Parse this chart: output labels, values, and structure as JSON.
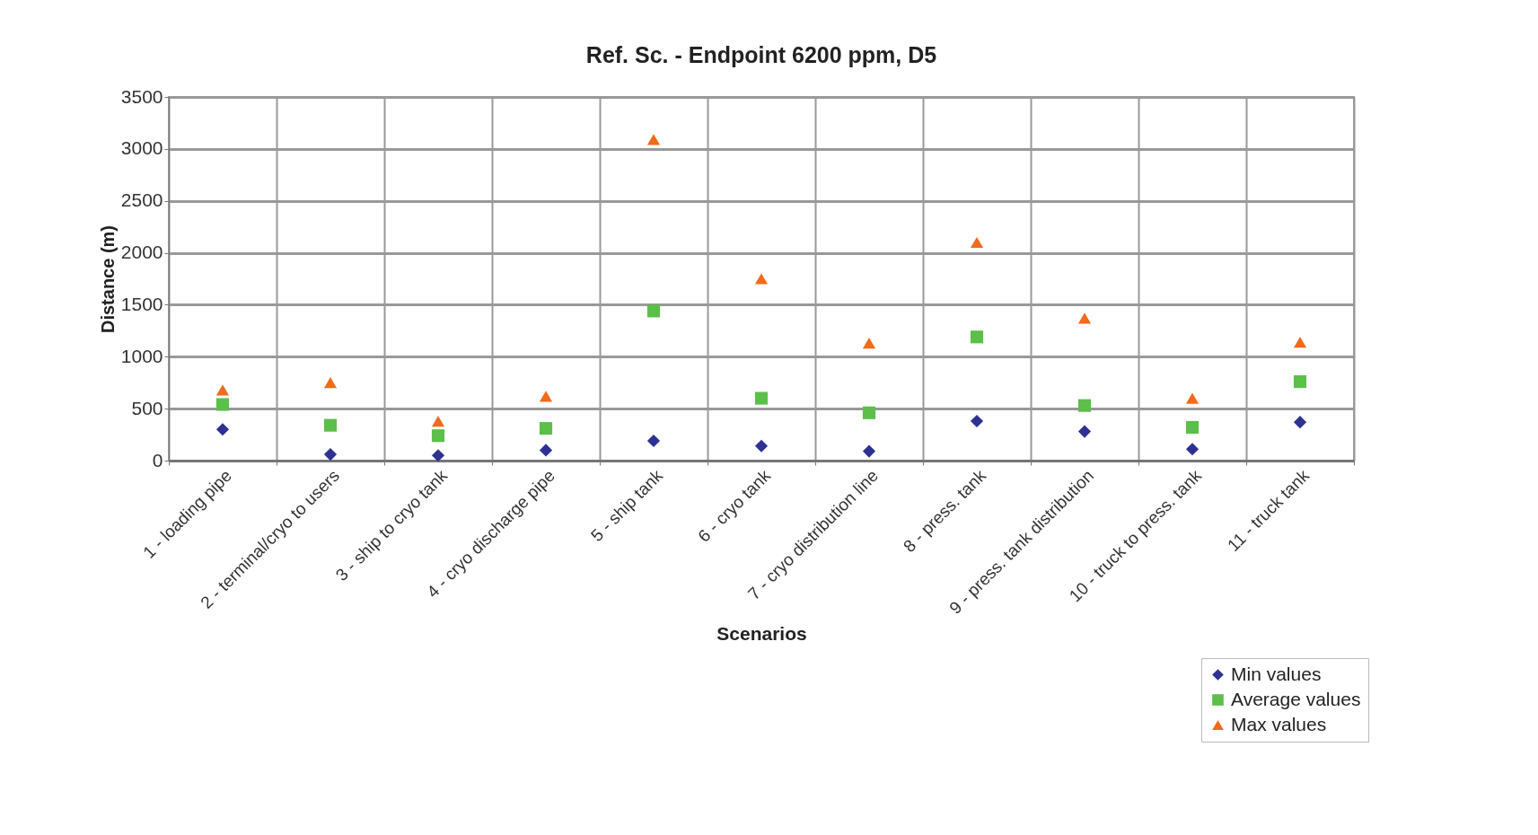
{
  "chart_data": {
    "type": "scatter",
    "title": "Ref. Sc. - Endpoint 6200 ppm, D5",
    "xlabel": "Scenarios",
    "ylabel": "Distance (m)",
    "categories": [
      "1 - loading pipe",
      "2 - terminal/cryo to users",
      "3 - ship to cryo tank",
      "4 - cryo discharge pipe",
      "5 - ship tank",
      "6 - cryo tank",
      "7 - cryo distribution line",
      "8 - press. tank",
      "9 - press. tank distribution",
      "10 - truck to press. tank",
      "11 - truck tank"
    ],
    "series": [
      {
        "name": "Min values",
        "color": "#2e3192",
        "marker": "diamond",
        "values": [
          300,
          60,
          50,
          100,
          190,
          140,
          90,
          380,
          280,
          110,
          370
        ]
      },
      {
        "name": "Average values",
        "color": "#5cbf4a",
        "marker": "square",
        "values": [
          540,
          340,
          240,
          310,
          1440,
          600,
          460,
          1190,
          530,
          320,
          760
        ]
      },
      {
        "name": "Max values",
        "color": "#f26a1b",
        "marker": "triangle",
        "values": [
          680,
          750,
          380,
          620,
          3090,
          1750,
          1130,
          2100,
          1370,
          600,
          1140
        ]
      }
    ],
    "ylim": [
      0,
      3500
    ],
    "yticks": [
      0,
      500,
      1000,
      1500,
      2000,
      2500,
      3000,
      3500
    ],
    "grid": true,
    "legend": "bottom right"
  }
}
